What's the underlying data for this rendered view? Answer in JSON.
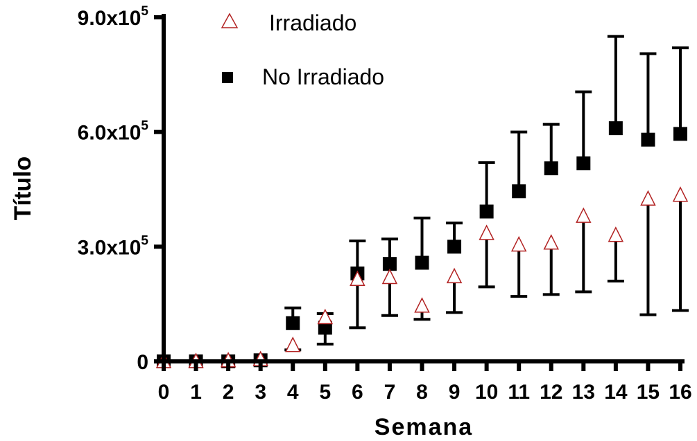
{
  "chart_data": {
    "type": "scatter",
    "xlabel": "Semana",
    "ylabel": "Título",
    "xlim": [
      0,
      16
    ],
    "ylim": [
      0,
      900000
    ],
    "x_ticks": [
      0,
      1,
      2,
      3,
      4,
      5,
      6,
      7,
      8,
      9,
      10,
      11,
      12,
      13,
      14,
      15,
      16
    ],
    "y_ticks": [
      {
        "value": 0,
        "mantissa": "0",
        "exp": ""
      },
      {
        "value": 300000,
        "mantissa": "3.0x10",
        "exp": "5"
      },
      {
        "value": 600000,
        "mantissa": "6.0x10",
        "exp": "5"
      },
      {
        "value": 900000,
        "mantissa": "9.0x10",
        "exp": "5"
      }
    ],
    "legend_position": "top-left",
    "colors": {
      "irradiado": "#b22222",
      "no_irradiado": "#000000",
      "errorbar": "#000000"
    },
    "series": [
      {
        "name": "Irradiado",
        "marker": "open-triangle",
        "x": [
          0,
          1,
          2,
          3,
          4,
          5,
          6,
          7,
          8,
          9,
          10,
          11,
          12,
          13,
          14,
          15,
          16
        ],
        "y": [
          0,
          0,
          2000,
          5000,
          42000,
          115000,
          215000,
          220000,
          145000,
          222000,
          335000,
          305000,
          310000,
          380000,
          330000,
          425000,
          435000
        ],
        "err_low": [
          null,
          null,
          null,
          null,
          30000,
          null,
          88000,
          120000,
          110000,
          128000,
          195000,
          170000,
          175000,
          182000,
          210000,
          122000,
          133000
        ],
        "err_high": [
          null,
          null,
          null,
          null,
          null,
          null,
          null,
          null,
          null,
          null,
          null,
          null,
          null,
          null,
          null,
          null,
          null
        ]
      },
      {
        "name": "No Irradiado",
        "marker": "filled-square",
        "x": [
          0,
          1,
          2,
          3,
          4,
          5,
          6,
          7,
          8,
          9,
          10,
          11,
          12,
          13,
          14,
          15,
          16
        ],
        "y": [
          0,
          0,
          0,
          3000,
          100000,
          88000,
          230000,
          255000,
          258000,
          300000,
          392000,
          445000,
          505000,
          518000,
          610000,
          580000,
          595000
        ],
        "err_low": [
          null,
          null,
          null,
          null,
          null,
          45000,
          null,
          null,
          null,
          null,
          null,
          null,
          null,
          null,
          null,
          null,
          null
        ],
        "err_high": [
          null,
          null,
          null,
          null,
          140000,
          125000,
          315000,
          320000,
          375000,
          362000,
          520000,
          600000,
          620000,
          705000,
          850000,
          805000,
          820000
        ]
      }
    ]
  }
}
